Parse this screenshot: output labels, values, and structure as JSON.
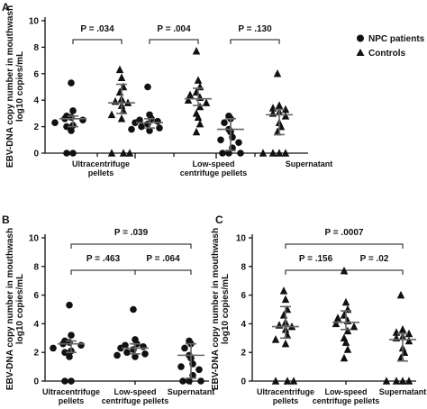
{
  "chart_data": [
    {
      "panel": "A",
      "type": "scatter",
      "ylabel": [
        "EBV-DNA copy number in mouthwash",
        "log10 copies/mL"
      ],
      "ylim": [
        0,
        10
      ],
      "yticks": [
        0,
        2,
        4,
        6,
        8,
        10
      ],
      "grid": false,
      "categories": [
        [
          "Ultracentrifuge",
          "pellets"
        ],
        [
          "Low-speed",
          "centrifuge pellets"
        ],
        [
          "Supernatant"
        ]
      ],
      "legend": {
        "position": "top-right",
        "entries": [
          {
            "label": "NPC patients",
            "marker": "circle"
          },
          {
            "label": "Controls",
            "marker": "triangle"
          }
        ]
      },
      "series": [
        {
          "name": "NPC patients",
          "marker": "circle",
          "points": [
            {
              "category": 0,
              "values": [
                5.3,
                3.2,
                2.8,
                2.7,
                2.6,
                2.5,
                2.3,
                2.1,
                2.0,
                1.7,
                0,
                0
              ],
              "summary": {
                "median": 2.6,
                "low": 2.0,
                "high": 2.8
              }
            },
            {
              "category": 1,
              "values": [
                5.0,
                2.9,
                2.6,
                2.5,
                2.4,
                2.3,
                2.2,
                2.0,
                1.9,
                1.8,
                1.7
              ],
              "summary": {
                "median": 2.3,
                "low": 1.9,
                "high": 2.6
              }
            },
            {
              "category": 2,
              "values": [
                2.8,
                2.6,
                2.3,
                1.8,
                1.6,
                1.2,
                1.0,
                0.8,
                0.4,
                0,
                0,
                0
              ],
              "summary": {
                "median": 1.8,
                "low": 0.2,
                "high": 2.6
              }
            }
          ]
        },
        {
          "name": "Controls",
          "marker": "triangle",
          "points": [
            {
              "category": 0,
              "values": [
                6.3,
                5.7,
                5.0,
                4.6,
                4.1,
                3.9,
                3.8,
                3.6,
                3.2,
                2.9,
                2.6,
                0,
                0,
                0
              ],
              "summary": {
                "median": 3.8,
                "low": 3.0,
                "high": 5.2
              }
            },
            {
              "category": 1,
              "values": [
                7.7,
                5.5,
                5.0,
                4.6,
                4.4,
                4.2,
                4.0,
                3.8,
                3.5,
                3.0,
                2.7,
                2.2,
                1.6
              ],
              "summary": {
                "median": 4.1,
                "low": 3.6,
                "high": 4.9
              }
            },
            {
              "category": 2,
              "values": [
                6.0,
                3.6,
                3.4,
                3.3,
                3.1,
                3.0,
                2.8,
                2.3,
                2.0,
                1.6,
                0,
                0,
                0,
                0
              ],
              "summary": {
                "median": 2.9,
                "low": 1.4,
                "high": 3.3
              }
            }
          ]
        }
      ],
      "comparisons": [
        {
          "label": "P = .034",
          "category": 0
        },
        {
          "label": "P = .004",
          "category": 1
        },
        {
          "label": "P = .130",
          "category": 2
        }
      ]
    },
    {
      "panel": "B",
      "type": "scatter",
      "ylabel": [
        "EBV-DNA copy number in mouthwash",
        "log10 copies/mL"
      ],
      "ylim": [
        0,
        10
      ],
      "yticks": [
        0,
        2,
        4,
        6,
        8,
        10
      ],
      "grid": false,
      "categories": [
        [
          "Ultracentrifuge",
          "pellets"
        ],
        [
          "Low-speed",
          "centrifuge pellets"
        ],
        [
          "Supernatant"
        ]
      ],
      "series": [
        {
          "name": "NPC patients",
          "marker": "circle",
          "points": [
            {
              "category": 0,
              "values": [
                5.3,
                3.2,
                2.8,
                2.7,
                2.6,
                2.5,
                2.3,
                2.1,
                2.0,
                1.7,
                0,
                0
              ],
              "summary": {
                "median": 2.6,
                "low": 2.0,
                "high": 2.8
              }
            },
            {
              "category": 1,
              "values": [
                5.0,
                2.9,
                2.6,
                2.5,
                2.4,
                2.3,
                2.2,
                2.0,
                1.9,
                1.8,
                1.7
              ],
              "summary": {
                "median": 2.3,
                "low": 1.9,
                "high": 2.6
              }
            },
            {
              "category": 2,
              "values": [
                2.8,
                2.6,
                2.3,
                1.8,
                1.6,
                1.2,
                1.0,
                0.8,
                0.4,
                0,
                0,
                0
              ],
              "summary": {
                "median": 1.8,
                "low": 0.2,
                "high": 2.6
              }
            }
          ]
        }
      ],
      "comparisons": [
        {
          "label": "P = .463",
          "from": 0,
          "to": 1,
          "level": 0
        },
        {
          "label": "P = .064",
          "from": 1,
          "to": 2,
          "level": 0
        },
        {
          "label": "P = .039",
          "from": 0,
          "to": 2,
          "level": 1
        }
      ]
    },
    {
      "panel": "C",
      "type": "scatter",
      "ylabel": [
        "EBV-DNA copy number in mouthwash",
        "log10 copies/mL"
      ],
      "ylim": [
        0,
        10
      ],
      "yticks": [
        0,
        2,
        4,
        6,
        8,
        10
      ],
      "grid": false,
      "categories": [
        [
          "Ultracentrifuge",
          "pellets"
        ],
        [
          "Low-speed",
          "centrifuge pellets"
        ],
        [
          "Supernatant"
        ]
      ],
      "series": [
        {
          "name": "Controls",
          "marker": "triangle",
          "points": [
            {
              "category": 0,
              "values": [
                6.3,
                5.7,
                5.0,
                4.6,
                4.1,
                3.9,
                3.8,
                3.6,
                3.2,
                2.9,
                2.6,
                0,
                0,
                0
              ],
              "summary": {
                "median": 3.8,
                "low": 3.0,
                "high": 5.2
              }
            },
            {
              "category": 1,
              "values": [
                7.7,
                5.5,
                5.0,
                4.6,
                4.4,
                4.2,
                4.0,
                3.8,
                3.5,
                3.0,
                2.7,
                2.2,
                1.6
              ],
              "summary": {
                "median": 4.1,
                "low": 3.6,
                "high": 4.9
              }
            },
            {
              "category": 2,
              "values": [
                6.0,
                3.6,
                3.4,
                3.3,
                3.1,
                3.0,
                2.8,
                2.3,
                2.0,
                1.6,
                0,
                0,
                0,
                0
              ],
              "summary": {
                "median": 2.9,
                "low": 1.4,
                "high": 3.3
              }
            }
          ]
        }
      ],
      "comparisons": [
        {
          "label": "P = .156",
          "from": 0,
          "to": 1,
          "level": 0
        },
        {
          "label": "P = .02",
          "from": 1,
          "to": 2,
          "level": 0
        },
        {
          "label": "P = .0007",
          "from": 0,
          "to": 2,
          "level": 1
        }
      ]
    }
  ]
}
